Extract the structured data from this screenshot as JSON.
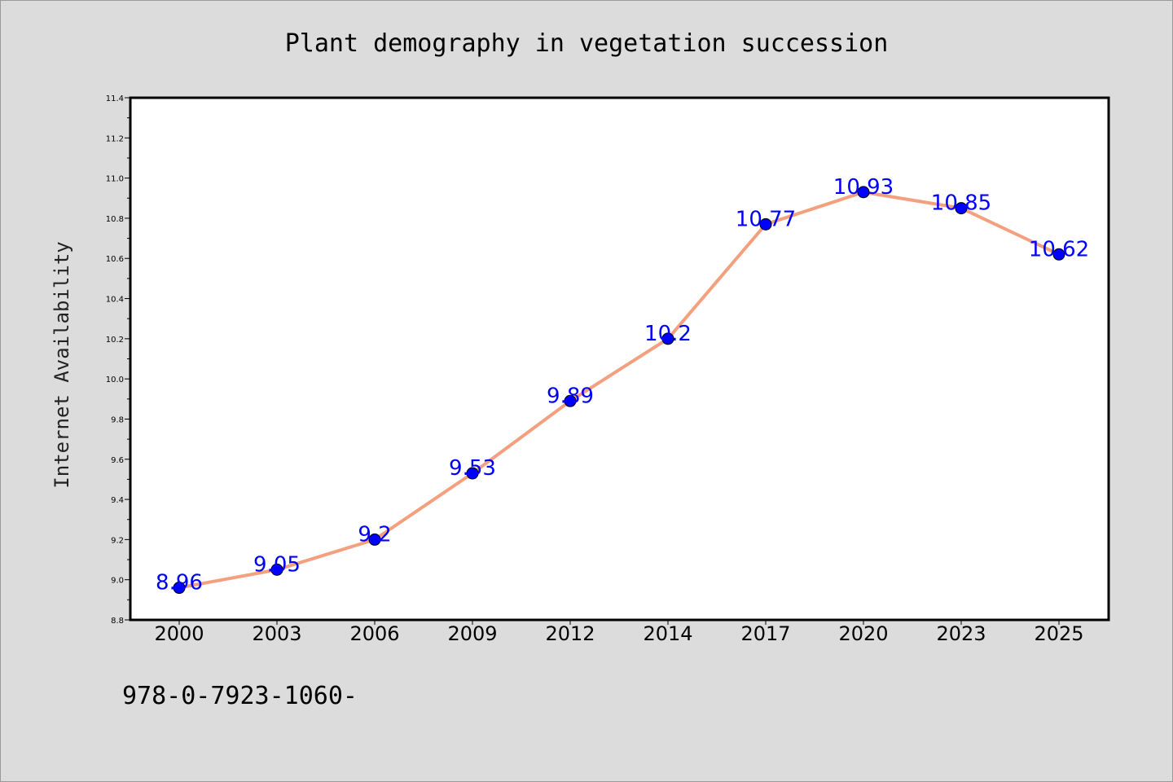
{
  "chart_data": {
    "type": "line",
    "title": "Plant demography in vegetation succession",
    "xlabel": "",
    "ylabel": "Internet Availability",
    "categories": [
      "2000",
      "2003",
      "2006",
      "2009",
      "2012",
      "2014",
      "2017",
      "2020",
      "2023",
      "2025"
    ],
    "series": [
      {
        "values": [
          8.96,
          9.05,
          9.2,
          9.53,
          9.89,
          10.2,
          10.77,
          10.93,
          10.85,
          10.62
        ],
        "data_labels": [
          "8.96",
          "9.05",
          "9.2",
          "9.53",
          "9.89",
          "10.2",
          "10.77",
          "10.93",
          "10.85",
          "10.62"
        ],
        "line_color": "#f4a07e",
        "marker_color": "#0000ff"
      }
    ],
    "ylim": [
      8.8,
      11.4
    ],
    "yticks": [
      "8.8",
      "9.0",
      "9.2",
      "9.4",
      "9.6",
      "9.8",
      "10.0",
      "10.2",
      "10.4",
      "10.6",
      "10.8",
      "11.0",
      "11.2",
      "11.4"
    ],
    "grid": false,
    "legend": "none",
    "plot_background": "#ffffff",
    "page_background": "#dcdcdc",
    "footer_text": "978-0-7923-1060-"
  }
}
